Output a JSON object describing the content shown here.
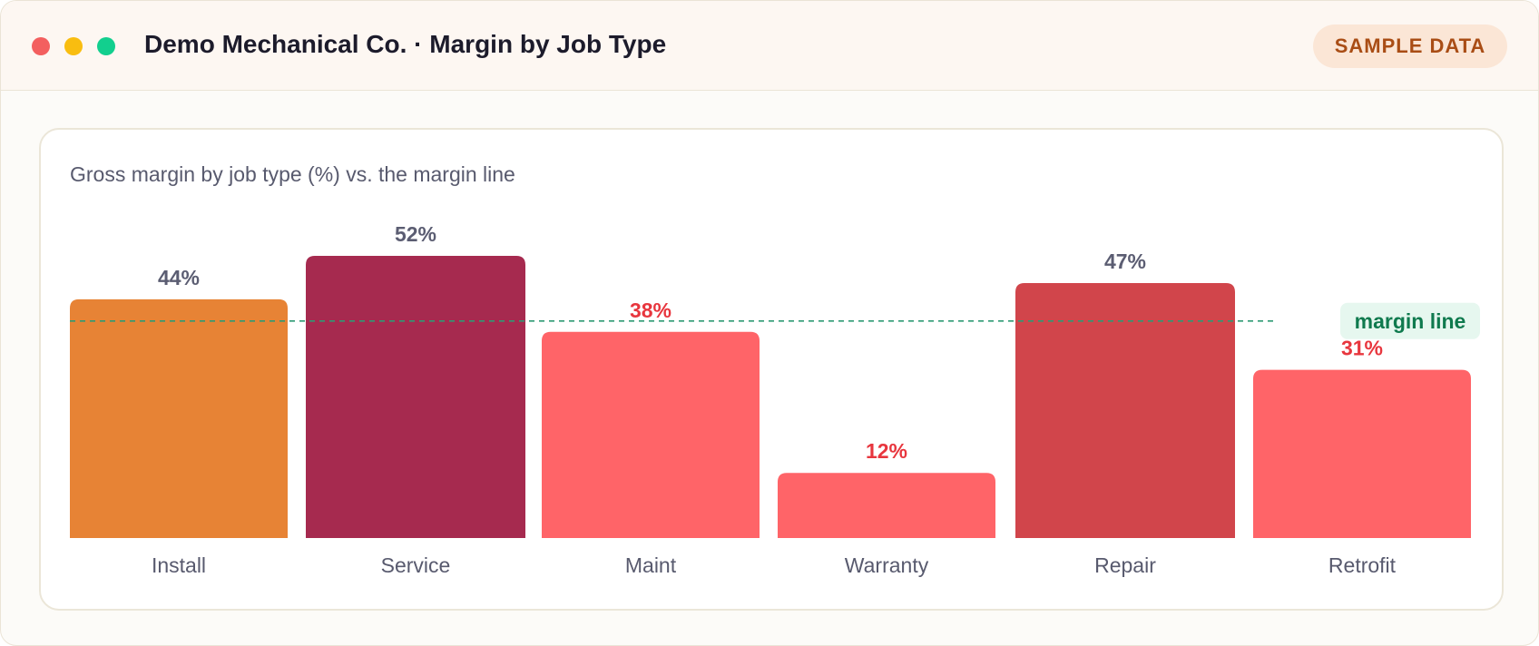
{
  "window": {
    "title": "Demo Mechanical Co. · Margin by Job Type",
    "badge": "SAMPLE DATA",
    "controls": [
      "close",
      "minimize",
      "maximize"
    ]
  },
  "card": {
    "subtitle": "Gross margin by job type (%) vs. the margin line"
  },
  "colors": {
    "close": "#f35f5f",
    "minimize": "#f9bd10",
    "maximize": "#12cf8e",
    "above_line_label": "#5b5d72",
    "below_line_label": "#e8363e",
    "margin_line": "#2e9a74",
    "margin_line_label": "#0f7a4e",
    "margin_line_label_bg": "#e6f7ef"
  },
  "chart_data": {
    "type": "bar",
    "categories": [
      "Install",
      "Service",
      "Maint",
      "Warranty",
      "Repair",
      "Retrofit"
    ],
    "values": [
      44,
      52,
      38,
      12,
      47,
      31
    ],
    "value_labels": [
      "44%",
      "52%",
      "38%",
      "12%",
      "47%",
      "31%"
    ],
    "bar_colors": [
      "#e78335",
      "#a62a4f",
      "#ff6468",
      "#ff6468",
      "#d1454b",
      "#ff6468"
    ],
    "label_colors": [
      "#5b5d72",
      "#5b5d72",
      "#e8363e",
      "#e8363e",
      "#5b5d72",
      "#e8363e"
    ],
    "reference_line": {
      "value": 40,
      "label": "margin line"
    },
    "ylim": [
      0,
      52
    ],
    "xlabel": "",
    "ylabel": "",
    "grid": false,
    "legend": "none"
  }
}
